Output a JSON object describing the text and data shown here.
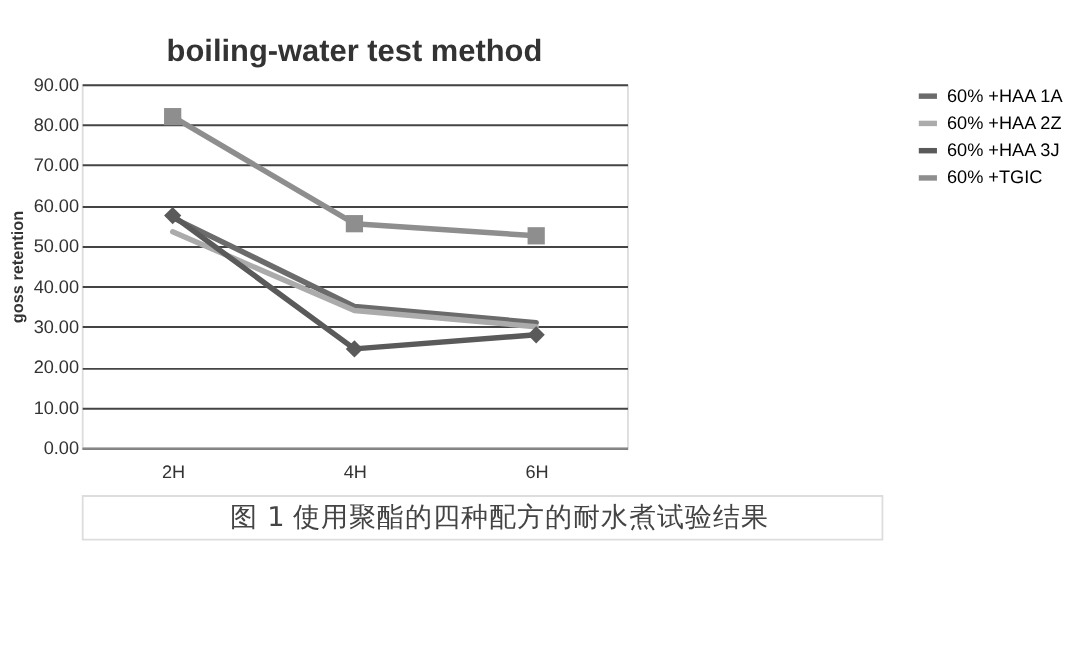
{
  "chart_data": {
    "type": "line",
    "title": "boiling-water  test method",
    "ylabel": "goss retention",
    "categories": [
      "2H",
      "4H",
      "6H"
    ],
    "series": [
      {
        "name": "60% +HAA 1A",
        "color": "#6b6b6b",
        "marker": "none",
        "values": [
          57,
          35,
          31
        ]
      },
      {
        "name": "60%  +HAA 2Z",
        "color": "#ababab",
        "marker": "none",
        "values": [
          53.5,
          34,
          30
        ]
      },
      {
        "name": "60%  +HAA 3J",
        "color": "#5a5a5a",
        "marker": "diamond",
        "values": [
          57.5,
          24.5,
          28
        ]
      },
      {
        "name": "60%  +TGIC",
        "color": "#8e8e8e",
        "marker": "square",
        "values": [
          82,
          55.5,
          52.5
        ]
      }
    ],
    "ylim": [
      0,
      90
    ],
    "yticks": [
      {
        "value": 0,
        "label": "0.00"
      },
      {
        "value": 10,
        "label": "10.00"
      },
      {
        "value": 20,
        "label": "20.00"
      },
      {
        "value": 30,
        "label": "30.00"
      },
      {
        "value": 40,
        "label": "40.00"
      },
      {
        "value": 50,
        "label": "50.00"
      },
      {
        "value": 60,
        "label": "60.00"
      },
      {
        "value": 70,
        "label": "70.00"
      },
      {
        "value": 80,
        "label": "80.00"
      },
      {
        "value": 90,
        "label": "90.00"
      }
    ],
    "grid": "y",
    "legend": "right",
    "line_style": "solid",
    "annotations": [
      "图 1 使用聚酯的四种配方的耐水煮试验结果"
    ]
  }
}
